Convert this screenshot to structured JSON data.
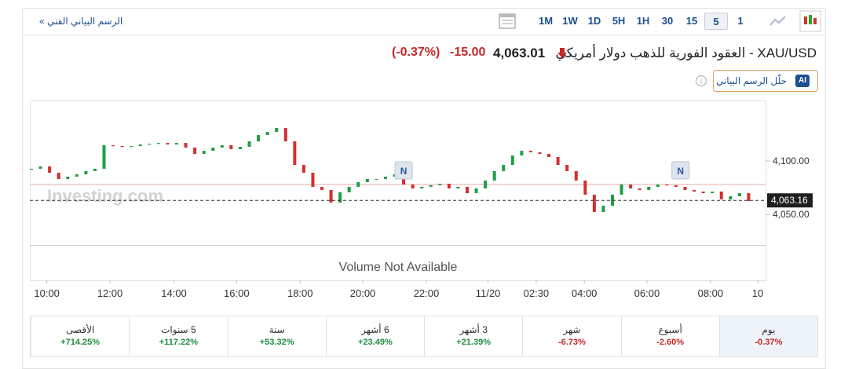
{
  "header": {
    "link": "الرسم البياني الفني »",
    "timeframes": [
      "1M",
      "1W",
      "1D",
      "5H",
      "1H",
      "30",
      "15",
      "5",
      "1"
    ],
    "selected_timeframe": "5"
  },
  "quote": {
    "title": "XAU/USD - العقود الفورية للذهب دولار أمريكي",
    "price": "4,063.01",
    "change": "-15.00",
    "change_percent": "(-0.37%)"
  },
  "ai_button": {
    "badge": "AI",
    "label": "حلّل الرسم البياني"
  },
  "chart_data": {
    "type": "candlestick",
    "up_color": "#1e9e45",
    "down_color": "#d32f2f",
    "values": [
      4092.7,
      4094.9,
      4089,
      4083.1,
      4085.3,
      4087.5,
      4090.5,
      4092.7,
      4114.7,
      4113.9,
      4113.2,
      4113.9,
      4115.4,
      4116.1,
      4116.8,
      4115.4,
      4116.8,
      4112.5,
      4106.6,
      4109.5,
      4112.5,
      4114.7,
      4111,
      4113.2,
      4118.3,
      4124.2,
      4127.1,
      4130.8,
      4118.3,
      4096.3,
      4089,
      4075.8,
      4072.9,
      4061.1,
      4070.7,
      4075.8,
      4080.2,
      4083.1,
      4083.1,
      4085.3,
      4087.5,
      4078,
      4074.3,
      4075.8,
      4077.3,
      4078.7,
      4074.3,
      4075.8,
      4069.9,
      4074.3,
      4081.7,
      4090.5,
      4096.3,
      4105.1,
      4109.5,
      4108.1,
      4106.6,
      4103.7,
      4096.3,
      4090.5,
      4081.7,
      4068.5,
      4052.3,
      4058.2,
      4068.5,
      4078,
      4074.3,
      4072.9,
      4075.8,
      4078,
      4077.3,
      4075.8,
      4072.9,
      4071.4,
      4069.9,
      4071.4,
      4064.1,
      4067,
      4069.9,
      4062.6
    ],
    "xlim": [
      0,
      80
    ],
    "ylim": [
      4034,
      4155
    ],
    "xticks": [
      {
        "value": 1.7,
        "label": "10:00"
      },
      {
        "value": 8.65,
        "label": "12:00"
      },
      {
        "value": 15.7,
        "label": "14:00"
      },
      {
        "value": 22.6,
        "label": "16:00"
      },
      {
        "value": 29.6,
        "label": "18:00"
      },
      {
        "value": 36.5,
        "label": "20:00"
      },
      {
        "value": 43.5,
        "label": "22:00"
      },
      {
        "value": 50.3,
        "label": "11/20"
      },
      {
        "value": 55.6,
        "label": "02:30"
      },
      {
        "value": 60.9,
        "label": "04:00"
      },
      {
        "value": 67.8,
        "label": "06:00"
      },
      {
        "value": 74.8,
        "label": "08:00"
      },
      {
        "value": 80,
        "label": "10"
      }
    ],
    "yticks": [
      {
        "value": 4100,
        "label": "4,100.00"
      },
      {
        "value": 4050,
        "label": "4,050.00"
      }
    ],
    "current_price": {
      "value": 4063.16,
      "label": "4,063.16"
    },
    "reference_line": 4078,
    "news_markers": [
      {
        "x": 41,
        "label": "N"
      },
      {
        "x": 71.5,
        "label": "N"
      }
    ],
    "watermark": "Investing.com",
    "volume_note": "Volume Not Available"
  },
  "performance": [
    {
      "period": "يوم",
      "change": "-0.37%"
    },
    {
      "period": "أسبوع",
      "change": "-2.60%"
    },
    {
      "period": "شهر",
      "change": "-6.73%"
    },
    {
      "period": "3 أشهر",
      "change": "+21.39%"
    },
    {
      "period": "6 أشهر",
      "change": "+23.49%"
    },
    {
      "period": "سنة",
      "change": "+53.32%"
    },
    {
      "period": "5 سنوات",
      "change": "+117.22%"
    },
    {
      "period": "الأقصى",
      "change": "+714.25%"
    }
  ]
}
